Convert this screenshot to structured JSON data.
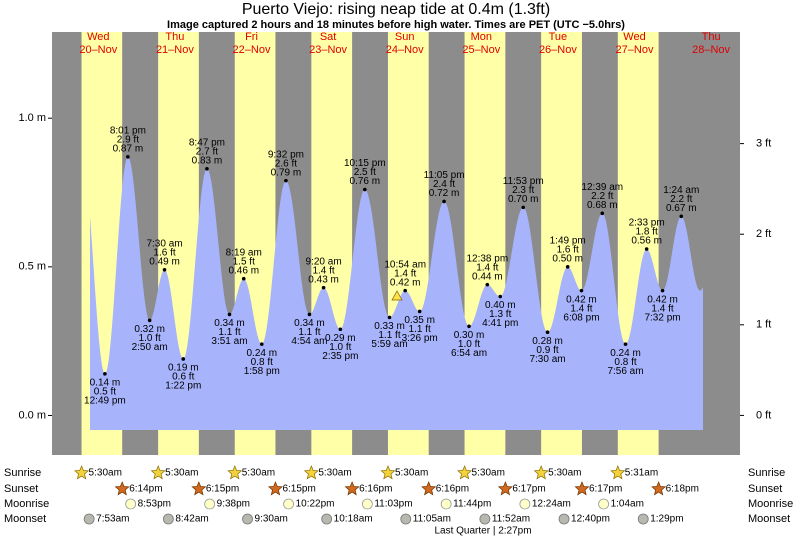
{
  "chart_data": {
    "type": "area",
    "title": "Puerto Viejo: rising  neap tide at 0.4m (1.3ft)",
    "subtitle": "Image captured 2 hours and 18 minutes before high water. Times are PET (UTC −5.0hrs)",
    "days": [
      {
        "weekday": "Wed",
        "date": "20–Nov"
      },
      {
        "weekday": "Thu",
        "date": "21–Nov"
      },
      {
        "weekday": "Fri",
        "date": "22–Nov"
      },
      {
        "weekday": "Sat",
        "date": "23–Nov"
      },
      {
        "weekday": "Sun",
        "date": "24–Nov"
      },
      {
        "weekday": "Mon",
        "date": "25–Nov"
      },
      {
        "weekday": "Tue",
        "date": "26–Nov"
      },
      {
        "weekday": "Wed",
        "date": "27–Nov"
      },
      {
        "weekday": "Thu",
        "date": "28–Nov"
      }
    ],
    "tides": {
      "color": "#a7b3fb",
      "x": [
        "12:49 pm",
        "8:01 pm",
        "2:50 am",
        "7:30 am",
        "1:22 pm",
        "8:47 pm",
        "3:51 am",
        "8:19 am",
        "1:58 pm",
        "9:32 pm",
        "4:54 am",
        "9:20 am",
        "2:35 pm",
        "10:15 pm",
        "5:59 am",
        "10:54 am",
        "3:26 pm",
        "11:05 pm",
        "6:54 am",
        "12:38 pm",
        "4:41 pm",
        "11:53 pm",
        "7:30 am",
        "1:49 pm",
        "6:08 pm",
        "12:39 am",
        "7:56 am",
        "2:33 pm",
        "7:32 pm",
        "1:24 am"
      ],
      "values": [
        0.14,
        0.87,
        0.32,
        0.49,
        0.19,
        0.83,
        0.34,
        0.46,
        0.24,
        0.79,
        0.34,
        0.43,
        0.29,
        0.76,
        0.33,
        0.42,
        0.35,
        0.72,
        0.3,
        0.44,
        0.4,
        0.7,
        0.28,
        0.5,
        0.42,
        0.68,
        0.24,
        0.56,
        0.42,
        0.67
      ],
      "value_labels": [
        "0.14 m",
        "0.87 m",
        "0.32 m",
        "0.49 m",
        "0.19 m",
        "0.83 m",
        "0.34 m",
        "0.46 m",
        "0.24 m",
        "0.79 m",
        "0.34 m",
        "0.43 m",
        "0.29 m",
        "0.76 m",
        "0.33 m",
        "0.42 m",
        "0.35 m",
        "0.72 m",
        "0.30 m",
        "0.44 m",
        "0.40 m",
        "0.70 m",
        "0.28 m",
        "0.50 m",
        "0.42 m",
        "0.68 m",
        "0.24 m",
        "0.56 m",
        "0.42 m",
        "0.67 m"
      ],
      "feet_labels": [
        "0.5 ft",
        "2.9 ft",
        "1.0 ft",
        "1.6 ft",
        "0.6 ft",
        "2.7 ft",
        "1.1 ft",
        "1.5 ft",
        "0.8 ft",
        "2.6 ft",
        "1.1 ft",
        "1.4 ft",
        "1.0 ft",
        "2.5 ft",
        "1.1 ft",
        "1.4 ft",
        "1.1 ft",
        "2.4 ft",
        "1.0 ft",
        "1.4 ft",
        "1.3 ft",
        "2.3 ft",
        "0.9 ft",
        "1.6 ft",
        "1.4 ft",
        "2.2 ft",
        "0.8 ft",
        "1.8 ft",
        "1.4 ft",
        "2.2 ft"
      ]
    },
    "ylim": [
      -0.133,
      1.29
    ],
    "yticks": [
      {
        "value": 0,
        "label": "0.0 m"
      },
      {
        "value": 0.5,
        "label": "0.5 m"
      },
      {
        "value": 1,
        "label": "1.0 m"
      }
    ],
    "y2lim": [
      -0.437,
      4.232
    ],
    "y2ticks": [
      {
        "value": 0,
        "label": "0 ft"
      },
      {
        "value": 1,
        "label": "1 ft"
      },
      {
        "value": 2,
        "label": "2 ft"
      },
      {
        "value": 3,
        "label": "3 ft"
      }
    ],
    "night_color": "#8c8c8c",
    "day_color": "#ffffa8",
    "almanac": [
      {
        "name": "Sunrise",
        "times": [
          "5:30am",
          "5:30am",
          "5:30am",
          "5:30am",
          "5:30am",
          "5:30am",
          "5:30am",
          "5:31am"
        ]
      },
      {
        "name": "Sunset",
        "times": [
          "6:14pm",
          "6:15pm",
          "6:15pm",
          "6:16pm",
          "6:16pm",
          "6:17pm",
          "6:17pm",
          "6:18pm"
        ]
      },
      {
        "name": "Moonrise",
        "times": [
          "8:53pm",
          "9:38pm",
          "10:22pm",
          "11:03pm",
          "11:44pm",
          null,
          "12:24am",
          "1:04am"
        ]
      },
      {
        "name": "Moonset",
        "times": [
          "7:53am",
          "8:42am",
          "9:30am",
          "10:18am",
          "11:05am",
          "11:52am",
          "12:40pm",
          "1:29pm"
        ]
      }
    ],
    "moon_phase": "Last Quarter | 2:27pm"
  }
}
